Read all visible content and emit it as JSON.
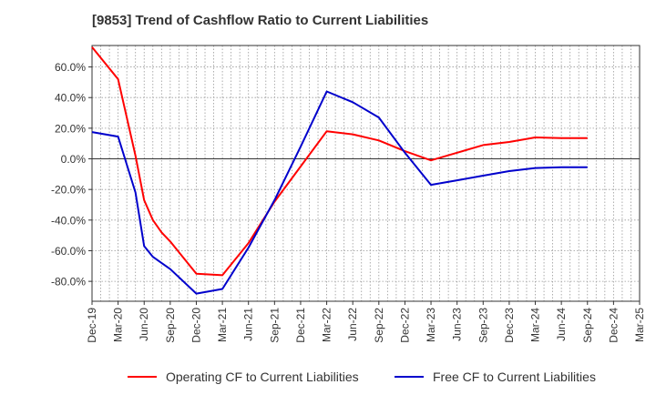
{
  "title": "[9853]  Trend of Cashflow Ratio to Current Liabilities",
  "chart_data": {
    "type": "line",
    "title": "[9853]  Trend of Cashflow Ratio to Current Liabilities",
    "xlabel": "",
    "ylabel": "",
    "categories": [
      "Dec-19",
      "Jan-20",
      "Feb-20",
      "Mar-20",
      "Apr-20",
      "May-20",
      "Jun-20",
      "Jul-20",
      "Aug-20",
      "Sep-20",
      "Oct-20",
      "Nov-20",
      "Dec-20",
      "Jan-21",
      "Feb-21",
      "Mar-21",
      "Apr-21",
      "May-21",
      "Jun-21",
      "Jul-21",
      "Aug-21",
      "Sep-21",
      "Oct-21",
      "Nov-21",
      "Dec-21",
      "Jan-22",
      "Feb-22",
      "Mar-22",
      "Apr-22",
      "May-22",
      "Jun-22",
      "Jul-22",
      "Aug-22",
      "Sep-22",
      "Oct-22",
      "Nov-22",
      "Dec-22",
      "Jan-23",
      "Feb-23",
      "Mar-23",
      "Apr-23",
      "May-23",
      "Jun-23",
      "Jul-23",
      "Aug-23",
      "Sep-23",
      "Oct-23",
      "Nov-23",
      "Dec-23",
      "Jan-24",
      "Feb-24",
      "Mar-24",
      "Apr-24",
      "May-24",
      "Jun-24",
      "Jul-24",
      "Aug-24",
      "Sep-24",
      "Oct-24",
      "Nov-24",
      "Dec-24",
      "Jan-25",
      "Feb-25",
      "Mar-25"
    ],
    "x_tick_labels": [
      "Dec-19",
      "Mar-20",
      "Jun-20",
      "Sep-20",
      "Dec-20",
      "Mar-21",
      "Jun-21",
      "Sep-21",
      "Dec-21",
      "Mar-22",
      "Jun-22",
      "Sep-22",
      "Dec-22",
      "Mar-23",
      "Jun-23",
      "Sep-23",
      "Dec-23",
      "Mar-24",
      "Jun-24",
      "Sep-24",
      "Dec-24",
      "Mar-25"
    ],
    "y_ticks": [
      -80,
      -60,
      -40,
      -20,
      0,
      20,
      40,
      60
    ],
    "y_tick_labels": [
      "-80.0%",
      "-60.0%",
      "-40.0%",
      "-20.0%",
      "0.0%",
      "20.0%",
      "40.0%",
      "60.0%"
    ],
    "ylim": [
      -93,
      74
    ],
    "grid": true,
    "legend_position": "bottom",
    "series": [
      {
        "name": "Operating CF to Current Liabilities",
        "color": "#ff0000",
        "x": [
          "Dec-19",
          "Mar-20",
          "May-20",
          "Jun-20",
          "Jul-20",
          "Aug-20",
          "Sep-20",
          "Dec-20",
          "Mar-21",
          "Jun-21",
          "Sep-21",
          "Dec-21",
          "Mar-22",
          "Jun-22",
          "Sep-22",
          "Dec-22",
          "Mar-23",
          "Jun-23",
          "Sep-23",
          "Dec-23",
          "Mar-24",
          "Jun-24",
          "Sep-24"
        ],
        "values": [
          73,
          52,
          2,
          -27,
          -40,
          -48,
          -54,
          -75,
          -76,
          -55,
          -28,
          -5,
          18,
          16,
          12,
          5,
          -1,
          4,
          9,
          11,
          14,
          13.5,
          13.5
        ]
      },
      {
        "name": "Free CF to Current Liabilities",
        "color": "#0000cc",
        "x": [
          "Dec-19",
          "Mar-20",
          "May-20",
          "Jun-20",
          "Jul-20",
          "Aug-20",
          "Sep-20",
          "Dec-20",
          "Mar-21",
          "Jun-21",
          "Sep-21",
          "Dec-21",
          "Mar-22",
          "Jun-22",
          "Sep-22",
          "Dec-22",
          "Mar-23",
          "Jun-23",
          "Sep-23",
          "Dec-23",
          "Mar-24",
          "Jun-24",
          "Sep-24"
        ],
        "values": [
          17.5,
          14.5,
          -22,
          -57,
          -64,
          -68,
          -72,
          -88,
          -85,
          -58,
          -27,
          8,
          44,
          37,
          27,
          4,
          -17,
          -14,
          -11,
          -8,
          -6,
          -5.5,
          -5.5
        ]
      }
    ]
  }
}
